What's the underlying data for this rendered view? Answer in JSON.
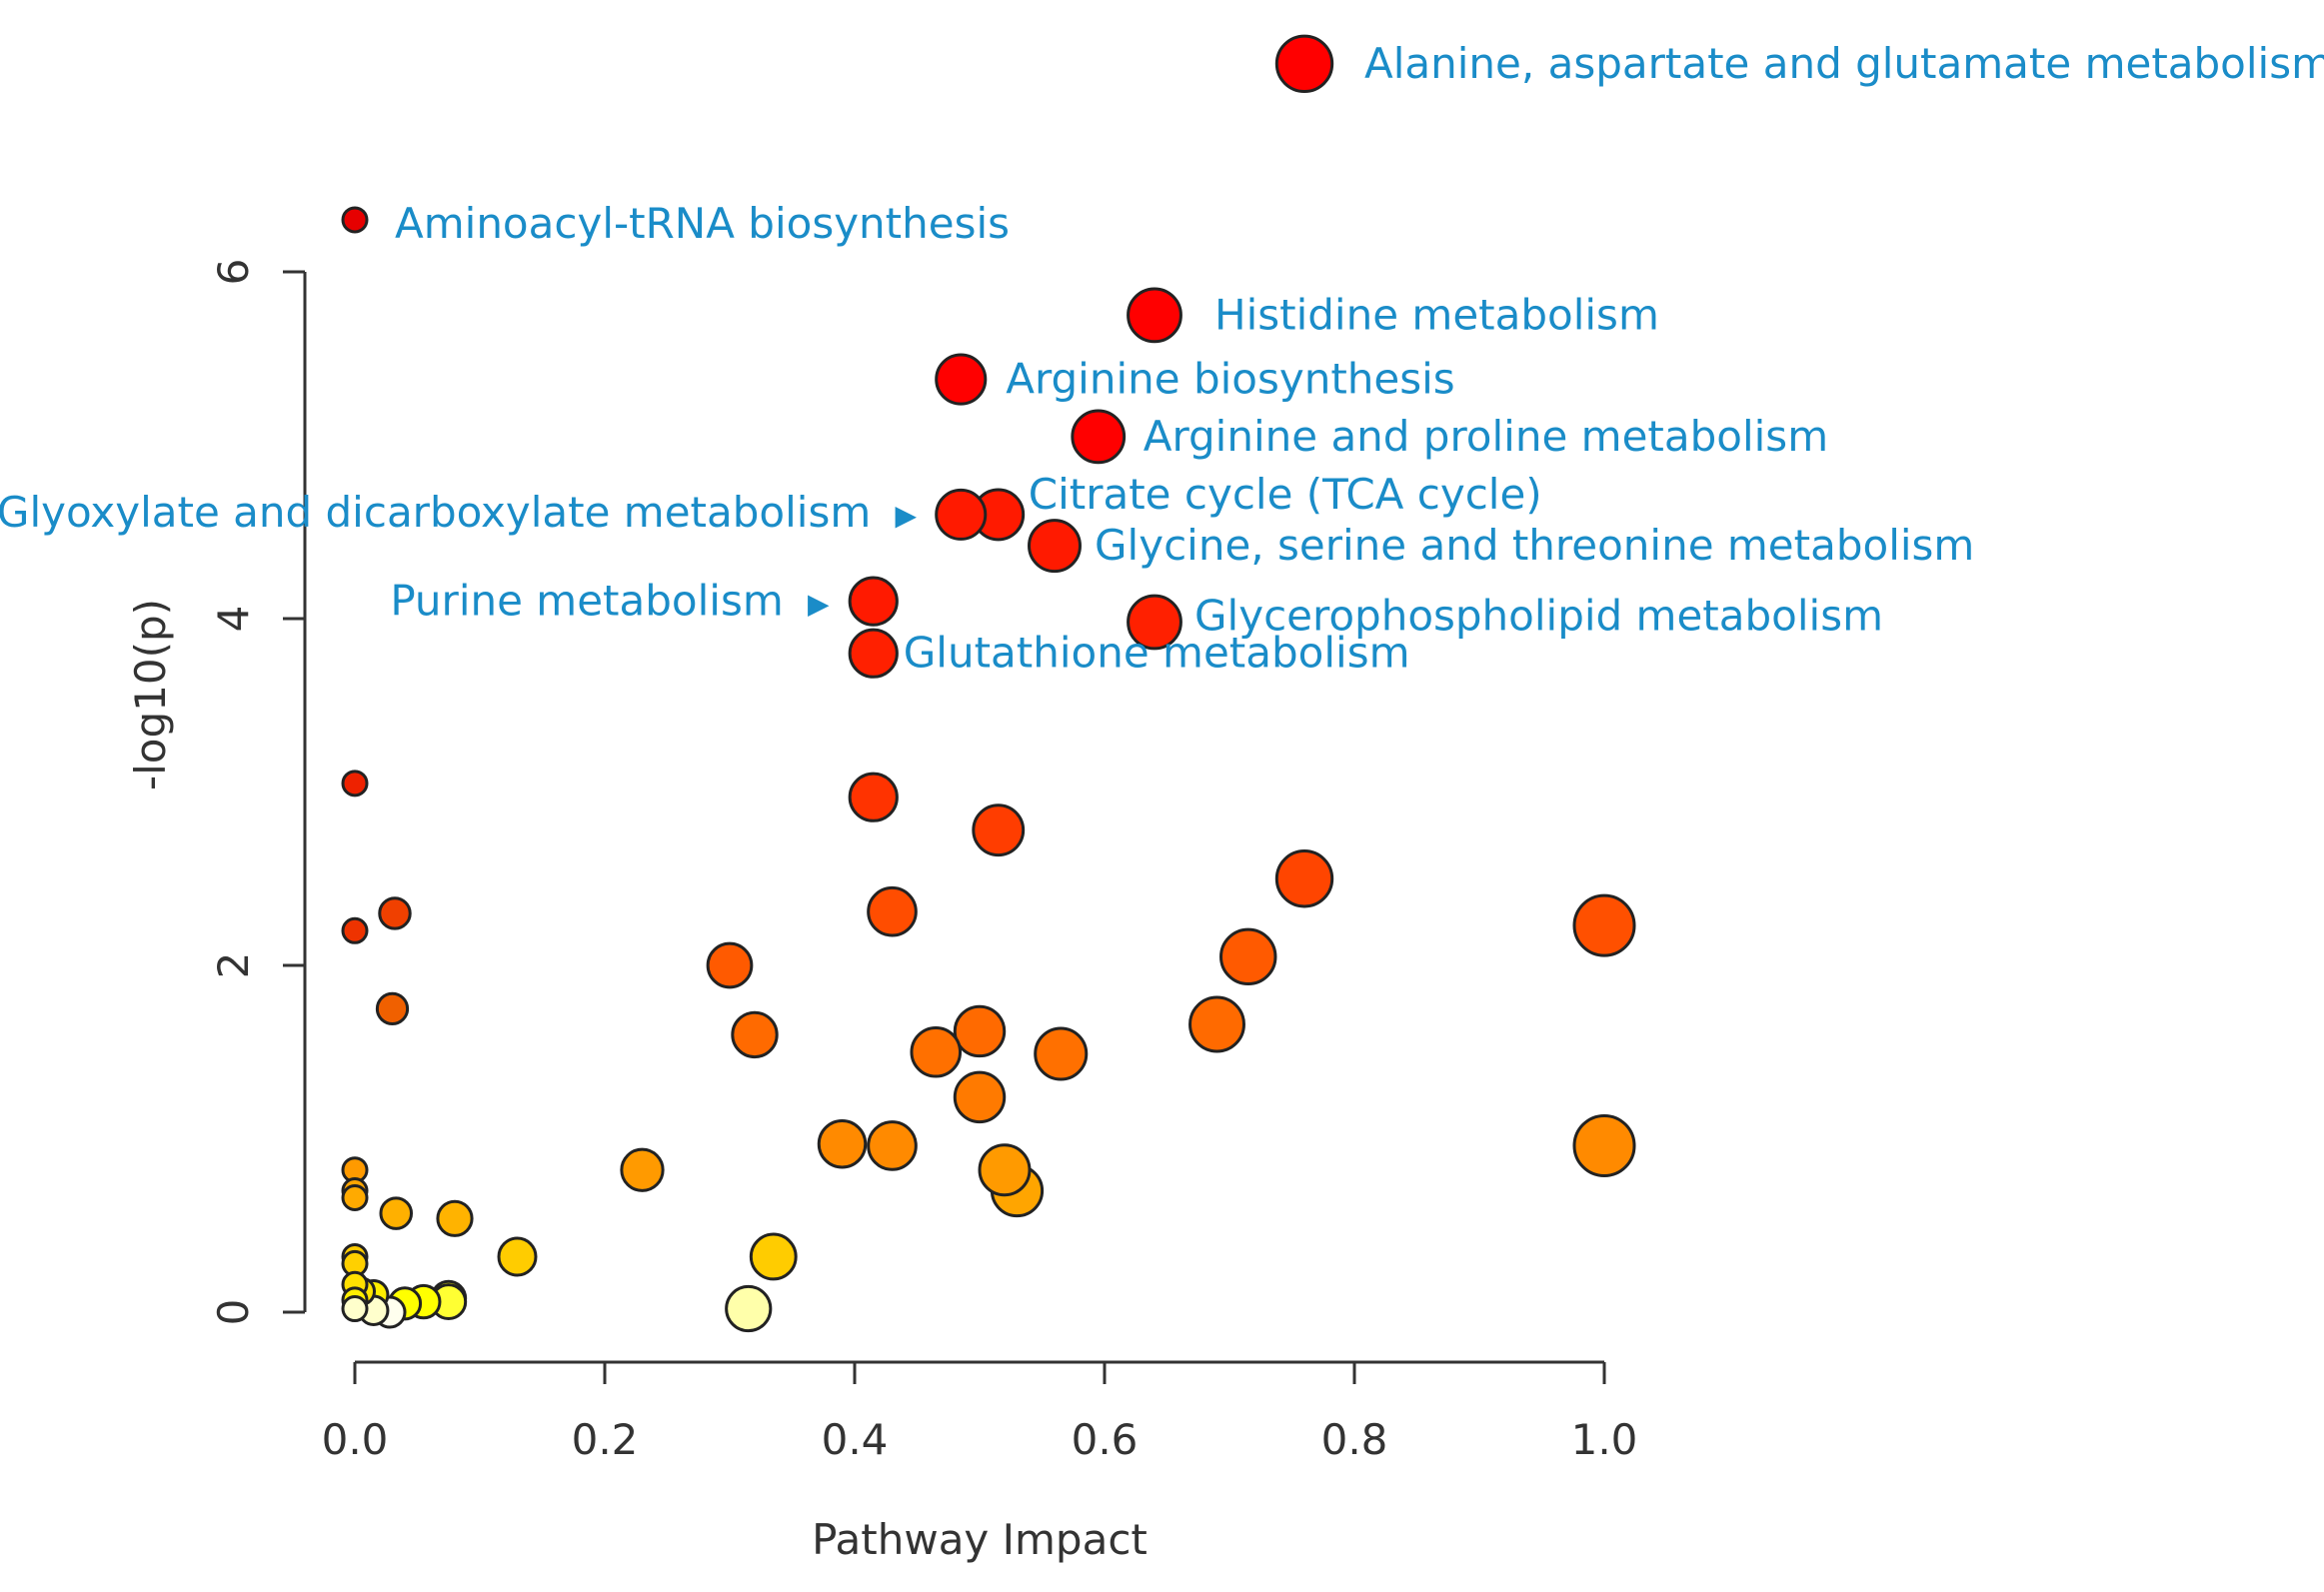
{
  "chart_data": {
    "type": "scatter",
    "title": "",
    "xlabel": "Pathway Impact",
    "ylabel": "-log10(p)",
    "xlim": [
      0.0,
      1.0
    ],
    "ylim": [
      0,
      6
    ],
    "x_ticks": [
      "0.0",
      "0.2",
      "0.4",
      "0.6",
      "0.8",
      "1.0"
    ],
    "y_ticks": [
      "0",
      "2",
      "4",
      "6"
    ],
    "grid": false,
    "annotations": [
      {
        "label": "Alanine, aspartate and glutamate metabolism",
        "x": 0.76,
        "y": 7.2,
        "size": 0.76,
        "color": "#ff0000",
        "arrow": ""
      },
      {
        "label": "Aminoacyl-tRNA biosynthesis",
        "x": 0.0,
        "y": 6.3,
        "size": 0.0,
        "color": "#e60000",
        "arrow": ""
      },
      {
        "label": "Histidine metabolism",
        "x": 0.64,
        "y": 5.75,
        "size": 0.64,
        "color": "#ff0000",
        "arrow": ""
      },
      {
        "label": "Arginine biosynthesis",
        "x": 0.485,
        "y": 5.38,
        "size": 0.485,
        "color": "#ff0000",
        "arrow": ""
      },
      {
        "label": "Arginine and proline metabolism",
        "x": 0.595,
        "y": 5.05,
        "size": 0.595,
        "color": "#ff0000",
        "arrow": ""
      },
      {
        "label": "Glyoxylate and dicarboxylate metabolism",
        "x": 0.485,
        "y": 4.6,
        "size": 0.485,
        "color": "#ff1a00",
        "arrow": "▶"
      },
      {
        "label": "Citrate cycle (TCA cycle)",
        "x": 0.515,
        "y": 4.6,
        "size": 0.515,
        "color": "#ff1a00",
        "arrow": ""
      },
      {
        "label": "Glycine, serine and threonine metabolism",
        "x": 0.56,
        "y": 4.42,
        "size": 0.56,
        "color": "#ff1a00",
        "arrow": ""
      },
      {
        "label": "Purine metabolism",
        "x": 0.415,
        "y": 4.1,
        "size": 0.415,
        "color": "#ff1a00",
        "arrow": "▶"
      },
      {
        "label": "Glycerophospholipid metabolism",
        "x": 0.64,
        "y": 3.98,
        "size": 0.64,
        "color": "#ff2000",
        "arrow": ""
      },
      {
        "label": "Glutathione metabolism",
        "x": 0.415,
        "y": 3.8,
        "size": 0.415,
        "color": "#ff2000",
        "arrow": ""
      }
    ],
    "points": [
      {
        "x": 0.0,
        "y": 3.05,
        "size": 0.0,
        "color": "#ee2200"
      },
      {
        "x": 0.0,
        "y": 2.2,
        "size": 0.0,
        "color": "#ee3300"
      },
      {
        "x": 0.032,
        "y": 2.3,
        "size": 0.032,
        "color": "#f04000"
      },
      {
        "x": 0.03,
        "y": 1.75,
        "size": 0.03,
        "color": "#f06000"
      },
      {
        "x": 0.415,
        "y": 2.97,
        "size": 0.415,
        "color": "#ff3300"
      },
      {
        "x": 0.515,
        "y": 2.78,
        "size": 0.515,
        "color": "#ff3d00"
      },
      {
        "x": 0.43,
        "y": 2.31,
        "size": 0.43,
        "color": "#ff4d00"
      },
      {
        "x": 0.76,
        "y": 2.5,
        "size": 0.76,
        "color": "#ff4500"
      },
      {
        "x": 1.0,
        "y": 2.23,
        "size": 1.0,
        "color": "#ff5000"
      },
      {
        "x": 0.3,
        "y": 2.0,
        "size": 0.3,
        "color": "#ff5a00"
      },
      {
        "x": 0.715,
        "y": 2.05,
        "size": 0.715,
        "color": "#ff5a00"
      },
      {
        "x": 0.32,
        "y": 1.6,
        "size": 0.32,
        "color": "#ff6a00"
      },
      {
        "x": 0.5,
        "y": 1.62,
        "size": 0.5,
        "color": "#ff6a00"
      },
      {
        "x": 0.69,
        "y": 1.66,
        "size": 0.69,
        "color": "#ff6a00"
      },
      {
        "x": 0.465,
        "y": 1.5,
        "size": 0.465,
        "color": "#ff7000"
      },
      {
        "x": 0.565,
        "y": 1.49,
        "size": 0.565,
        "color": "#ff7000"
      },
      {
        "x": 0.5,
        "y": 1.24,
        "size": 0.5,
        "color": "#ff7a00"
      },
      {
        "x": 0.39,
        "y": 0.97,
        "size": 0.39,
        "color": "#ff8a00"
      },
      {
        "x": 0.43,
        "y": 0.96,
        "size": 0.43,
        "color": "#ff8a00"
      },
      {
        "x": 1.0,
        "y": 0.96,
        "size": 1.0,
        "color": "#ff8a00"
      },
      {
        "x": 0.23,
        "y": 0.82,
        "size": 0.23,
        "color": "#ff9a00"
      },
      {
        "x": 0.52,
        "y": 0.82,
        "size": 0.52,
        "color": "#ff9a00"
      },
      {
        "x": 0.53,
        "y": 0.7,
        "size": 0.53,
        "color": "#ffa500"
      },
      {
        "x": 0.0,
        "y": 0.82,
        "size": 0.0,
        "color": "#ff9a00"
      },
      {
        "x": 0.0,
        "y": 0.7,
        "size": 0.0,
        "color": "#ffa500"
      },
      {
        "x": 0.0,
        "y": 0.66,
        "size": 0.0,
        "color": "#ffaa00"
      },
      {
        "x": 0.033,
        "y": 0.57,
        "size": 0.033,
        "color": "#ffb000"
      },
      {
        "x": 0.08,
        "y": 0.54,
        "size": 0.08,
        "color": "#ffb300"
      },
      {
        "x": 0.13,
        "y": 0.32,
        "size": 0.13,
        "color": "#ffcc00"
      },
      {
        "x": 0.335,
        "y": 0.32,
        "size": 0.335,
        "color": "#ffcc00"
      },
      {
        "x": 0.0,
        "y": 0.32,
        "size": 0.0,
        "color": "#ffcc00"
      },
      {
        "x": 0.0,
        "y": 0.28,
        "size": 0.0,
        "color": "#ffd000"
      },
      {
        "x": 0.0,
        "y": 0.16,
        "size": 0.0,
        "color": "#ffe000"
      },
      {
        "x": 0.005,
        "y": 0.12,
        "size": 0.005,
        "color": "#ffe500"
      },
      {
        "x": 0.015,
        "y": 0.1,
        "size": 0.015,
        "color": "#ffee00"
      },
      {
        "x": 0.0,
        "y": 0.07,
        "size": 0.0,
        "color": "#ffee00"
      },
      {
        "x": 0.04,
        "y": 0.05,
        "size": 0.04,
        "color": "#ffff00"
      },
      {
        "x": 0.055,
        "y": 0.06,
        "size": 0.055,
        "color": "#ffff00"
      },
      {
        "x": 0.075,
        "y": 0.08,
        "size": 0.075,
        "color": "#f5f500"
      },
      {
        "x": 0.075,
        "y": 0.06,
        "size": 0.075,
        "color": "#ffff33"
      },
      {
        "x": 0.0,
        "y": 0.02,
        "size": 0.0,
        "color": "#ffffcc"
      },
      {
        "x": 0.015,
        "y": 0.01,
        "size": 0.015,
        "color": "#ffffcc"
      },
      {
        "x": 0.028,
        "y": 0.0,
        "size": 0.028,
        "color": "#ffffee"
      },
      {
        "x": 0.315,
        "y": 0.02,
        "size": 0.315,
        "color": "#ffffaa"
      }
    ]
  }
}
